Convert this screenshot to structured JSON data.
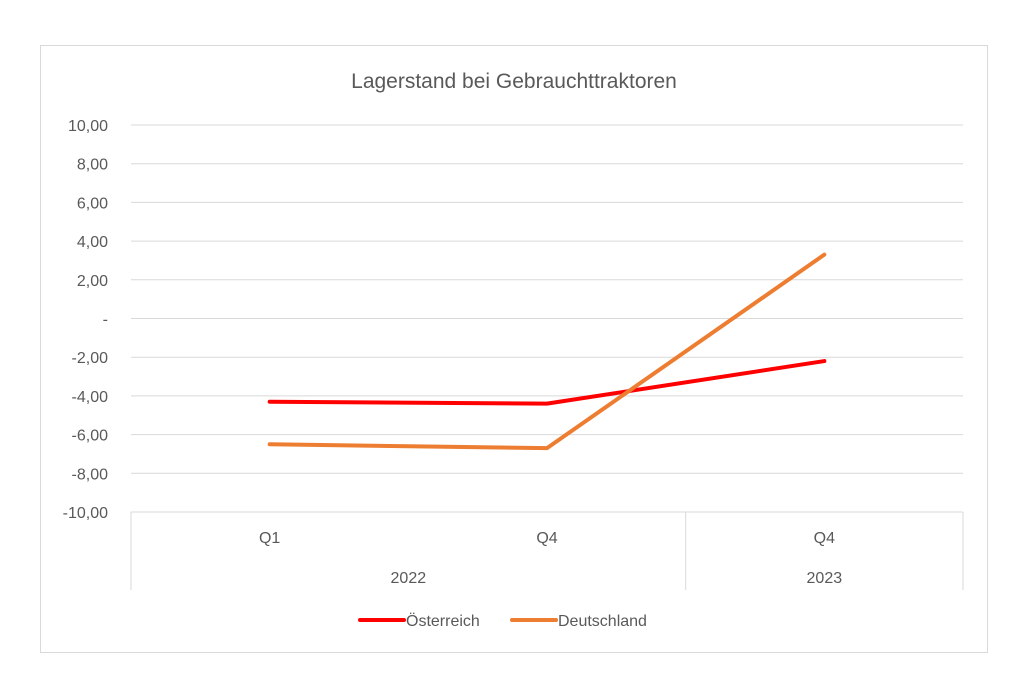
{
  "chart_data": {
    "type": "line",
    "title": "Lagerstand bei Gebrauchttraktoren",
    "categories": [
      "Q1",
      "Q4",
      "Q4"
    ],
    "category_groups": [
      {
        "label": "2022",
        "span": 2
      },
      {
        "label": "2023",
        "span": 1
      }
    ],
    "y_ticks": [
      "10,00",
      "8,00",
      "6,00",
      "4,00",
      "2,00",
      "-",
      "-2,00",
      "-4,00",
      "-6,00",
      "-8,00",
      "-10,00"
    ],
    "ylim": [
      -10,
      10
    ],
    "grid": true,
    "legend_position": "bottom",
    "series": [
      {
        "name": "Österreich",
        "color": "#ff0000",
        "values": [
          -4.3,
          -4.4,
          -2.2
        ]
      },
      {
        "name": "Deutschland",
        "color": "#ed7d31",
        "values": [
          -6.5,
          -6.7,
          3.3
        ]
      }
    ]
  },
  "colors": {
    "grid": "#d9d9d9",
    "text": "#595959"
  }
}
